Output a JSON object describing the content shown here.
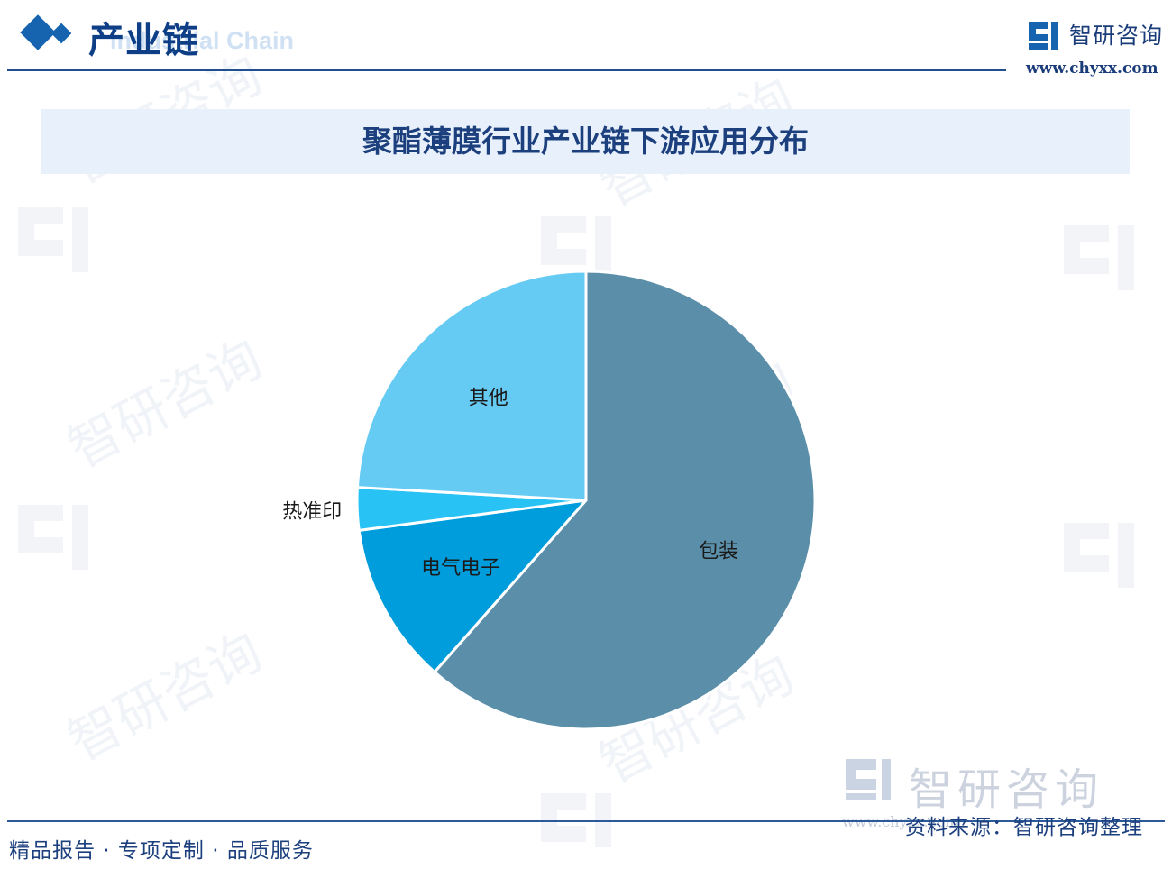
{
  "header": {
    "section_title": "产业链",
    "section_subtitle": "Industrial Chain",
    "brand_name": "智研咨询",
    "brand_url": "www.chyxx.com"
  },
  "chart_title": "聚酯薄膜行业产业链下游应用分布",
  "colors": {
    "packaging": "#5b8ea9",
    "electronics": "#009ddc",
    "thermal_transfer": "#29c2f4",
    "other": "#66cbf3",
    "navy": "#1c3f7e",
    "accent_blue": "#1663b0"
  },
  "chart_data": {
    "type": "pie",
    "title": "",
    "labels": [
      "包装",
      "电气电子",
      "热准印",
      "其他"
    ],
    "values": [
      61.5,
      11.4,
      3.0,
      24.1
    ],
    "unit": "%",
    "start": "12 o'clock",
    "direction": "clockwise",
    "legend": "none"
  },
  "watermark_text": "智研咨询",
  "footer": {
    "slogan": "精品报告 · 专项定制 · 品质服务",
    "source": "资料来源：智研咨询整理",
    "brand_name": "智研咨询",
    "brand_url": "www.chyxx.com"
  }
}
